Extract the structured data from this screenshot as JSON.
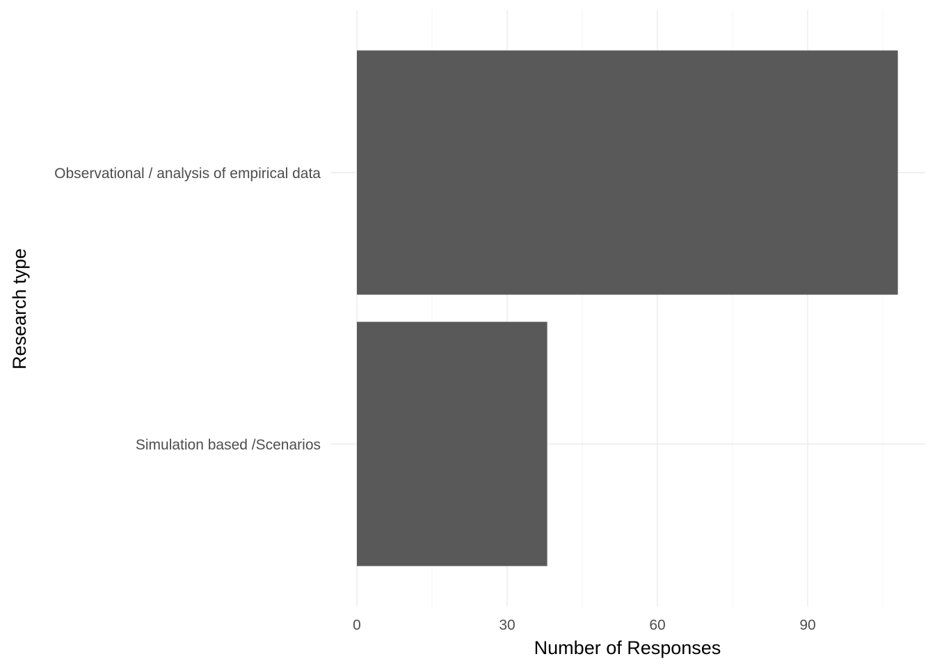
{
  "chart_data": {
    "type": "bar",
    "orientation": "horizontal",
    "categories": [
      "Observational / analysis of empirical data",
      "Simulation based /Scenarios"
    ],
    "values": [
      108,
      38
    ],
    "xlabel": "Number of Responses",
    "ylabel": "Research type",
    "xticks": [
      0,
      30,
      60,
      90
    ],
    "xlim": [
      0,
      113.4
    ],
    "grid": true,
    "bar_color": "#595959"
  }
}
